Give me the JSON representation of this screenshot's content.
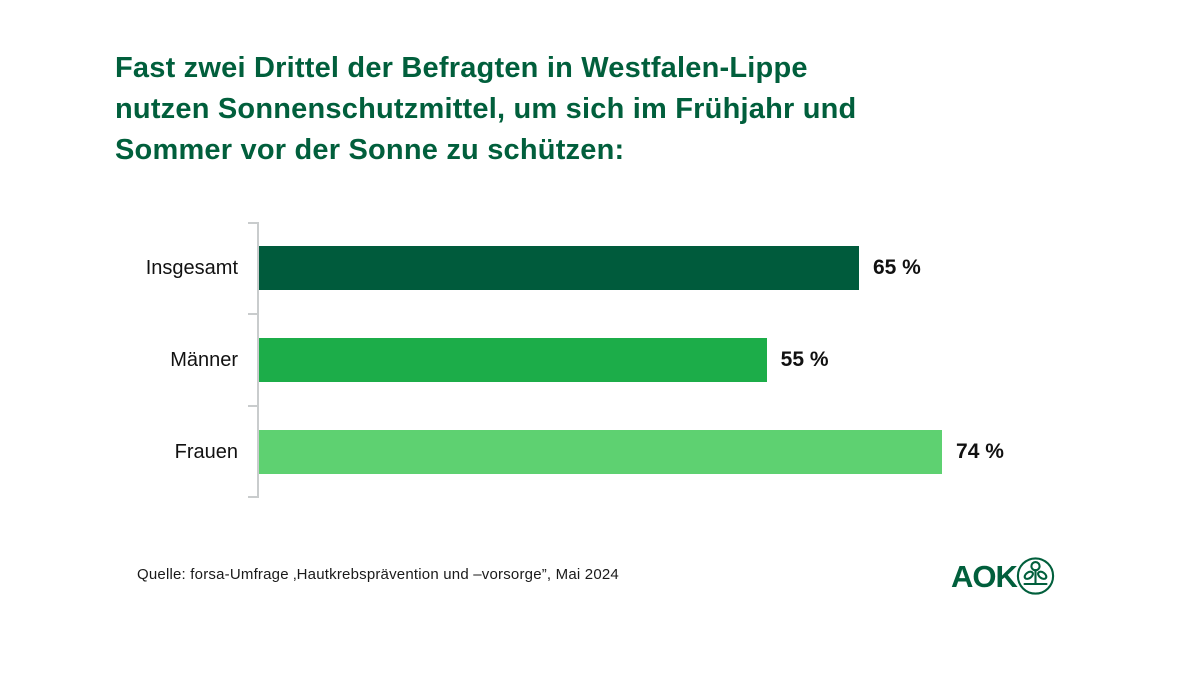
{
  "title": {
    "lines": [
      "Fast zwei Drittel der Befragten in Westfalen-Lippe",
      "nutzen Sonnenschutzmittel, um sich im Frühjahr und",
      "Sommer vor der Sonne zu schützen:"
    ],
    "color": "#015F3C"
  },
  "chart_data": {
    "type": "bar",
    "orientation": "horizontal",
    "categories": [
      "Insgesamt",
      "Männer",
      "Frauen"
    ],
    "values": [
      65,
      55,
      74
    ],
    "value_labels": [
      "65 %",
      "55 %",
      "74 %"
    ],
    "bar_colors": [
      "#005B3C",
      "#1CAD49",
      "#5ED171"
    ],
    "xlim": [
      0,
      100
    ],
    "unit": "%",
    "grid": false,
    "legend": false,
    "axis_color": "#c9cccd"
  },
  "footer": {
    "source": "Quelle: forsa-Umfrage ‚Hautkrebsprävention und –vorsorge”, Mai 2024",
    "logo_text": "AOK",
    "logo_color": "#015F3C"
  }
}
